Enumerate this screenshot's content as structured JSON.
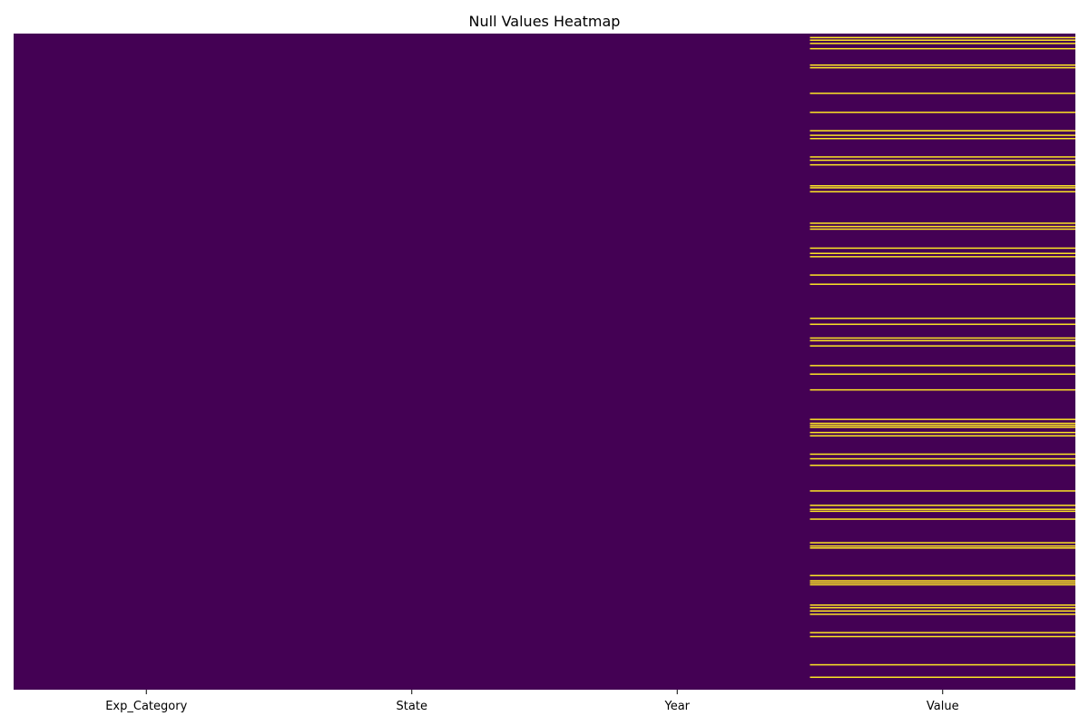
{
  "chart_data": {
    "type": "heatmap",
    "title": "Null Values Heatmap",
    "xlabel": "",
    "ylabel": "",
    "columns": [
      "Exp_Category",
      "State",
      "Year",
      "Value"
    ],
    "row_count": 1000,
    "colors": {
      "not_null": "#440154",
      "null": "#fde725"
    },
    "colorbar": false,
    "grid": false,
    "null_rows_by_column": {
      "Exp_Category": [],
      "State": [],
      "Year": [],
      "Value": [
        5,
        9,
        14,
        22,
        47,
        51,
        90,
        119,
        147,
        154,
        159,
        187,
        192,
        199,
        231,
        234,
        240,
        288,
        293,
        297,
        326,
        334,
        339,
        367,
        381,
        433,
        442,
        463,
        467,
        475,
        505,
        518,
        542,
        587,
        593,
        596,
        599,
        607,
        612,
        640,
        647,
        657,
        696,
        718,
        724,
        727,
        739,
        775,
        780,
        783,
        825,
        833,
        836,
        839,
        870,
        874,
        879,
        884,
        912,
        918,
        961,
        980
      ]
    }
  }
}
